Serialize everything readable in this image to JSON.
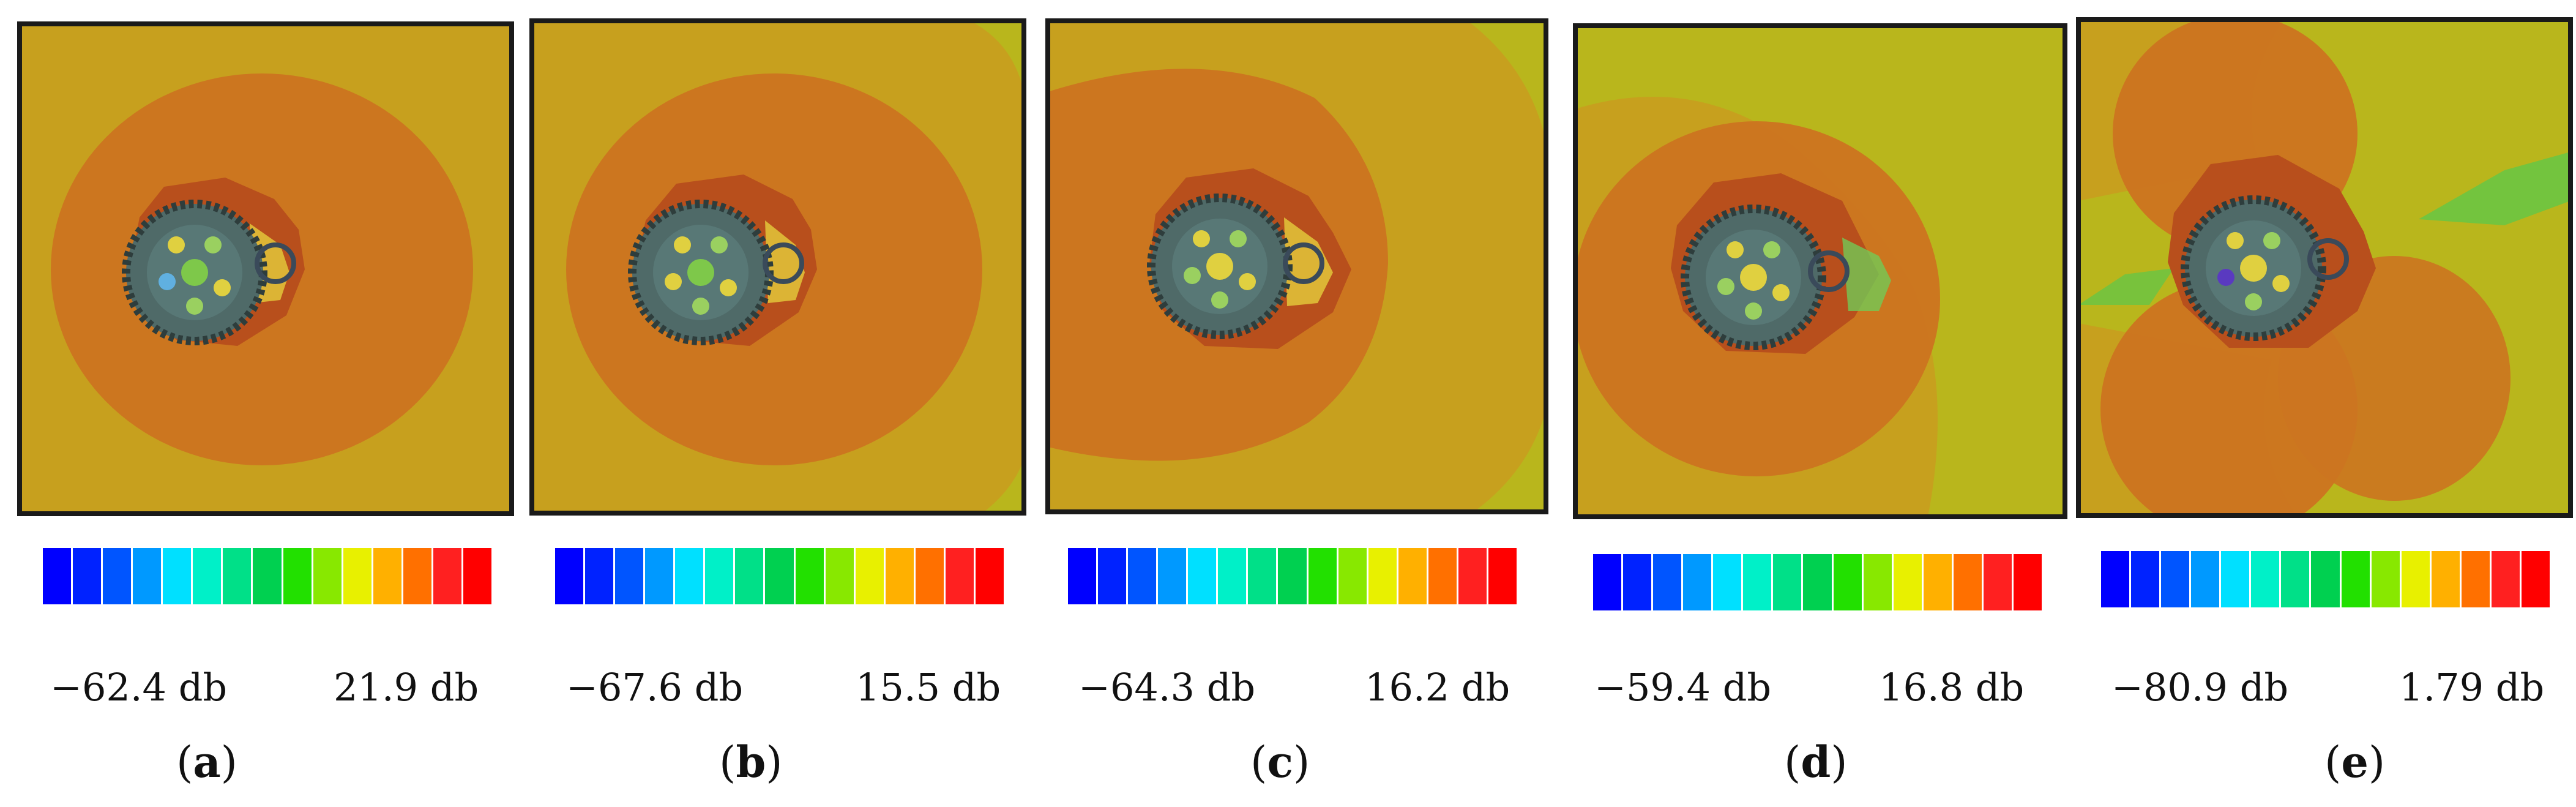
{
  "figure": {
    "colors": {
      "background_field": "#c7a01e",
      "background_field_d": "#b9b61c",
      "inner_lobe": "#cc7420",
      "near_field": "#b84f1c",
      "gear_body": "#4f6a68",
      "gear_dark": "#2e3d3c",
      "hot_spot": "#e8d23a",
      "frame": "#1a1a1a"
    },
    "colorbar_colors": [
      "#0000ff",
      "#0022ff",
      "#0055ff",
      "#0099ff",
      "#00e0ff",
      "#00f0c8",
      "#00e088",
      "#00d050",
      "#22e000",
      "#88e800",
      "#e8f000",
      "#ffb000",
      "#ff7000",
      "#ff2020",
      "#ff0000"
    ],
    "panels": [
      {
        "id": "a",
        "caption_letter": "a",
        "min_label": "−62.4 db",
        "max_label": "21.9 db",
        "min_value": -62.4,
        "max_value": 21.9,
        "unit": "db"
      },
      {
        "id": "b",
        "caption_letter": "b",
        "min_label": "−67.6 db",
        "max_label": "15.5 db",
        "min_value": -67.6,
        "max_value": 15.5,
        "unit": "db"
      },
      {
        "id": "c",
        "caption_letter": "c",
        "min_label": "−64.3 db",
        "max_label": "16.2 db",
        "min_value": -64.3,
        "max_value": 16.2,
        "unit": "db"
      },
      {
        "id": "d",
        "caption_letter": "d",
        "min_label": "−59.4 db",
        "max_label": "16.8 db",
        "min_value": -59.4,
        "max_value": 16.8,
        "unit": "db"
      },
      {
        "id": "e",
        "caption_letter": "e",
        "min_label": "−80.9 db",
        "max_label": "1.79 db",
        "min_value": -80.9,
        "max_value": 1.79,
        "unit": "db"
      }
    ]
  }
}
